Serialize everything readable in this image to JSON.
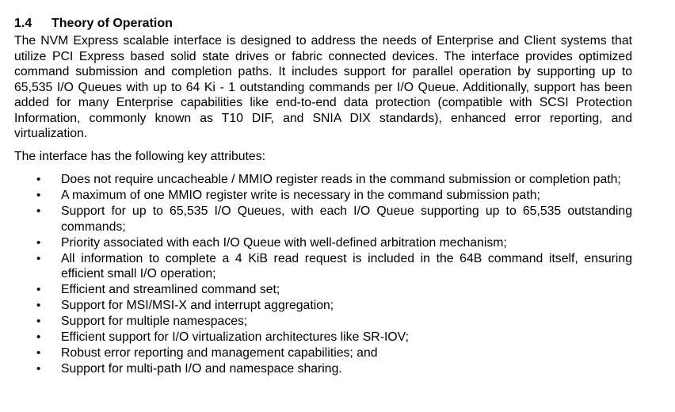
{
  "section": {
    "number": "1.4",
    "title": "Theory of Operation"
  },
  "paragraphs": [
    "The NVM Express scalable interface is designed to address the needs of Enterprise and Client systems that utilize PCI Express based solid state drives or fabric connected devices. The interface provides optimized command submission and completion paths. It includes support for parallel operation by supporting up to 65,535 I/O Queues with up to 64 Ki - 1 outstanding commands per I/O Queue. Additionally, support has been added for many Enterprise capabilities like end-to-end data protection (compatible with SCSI Protection Information, commonly known as T10 DIF, and SNIA DIX standards), enhanced error reporting, and virtualization.",
    "The interface has the following key attributes:"
  ],
  "bullet_glyph": "•",
  "attributes": [
    "Does not require uncacheable / MMIO register reads in the command submission or completion path;",
    "A maximum of one MMIO register write is necessary in the command submission path;",
    "Support for up to 65,535 I/O Queues, with each I/O Queue supporting up to 65,535 outstanding commands;",
    "Priority associated with each I/O Queue with well-defined arbitration mechanism;",
    "All information to complete a 4 KiB read request is included in the 64B command itself, ensuring efficient small I/O operation;",
    "Efficient and streamlined command set;",
    "Support for MSI/MSI-X and interrupt aggregation;",
    "Support for multiple namespaces;",
    "Efficient support for I/O virtualization architectures like SR-IOV;",
    "Robust error reporting and management capabilities; and",
    "Support for multi-path I/O and namespace sharing."
  ]
}
